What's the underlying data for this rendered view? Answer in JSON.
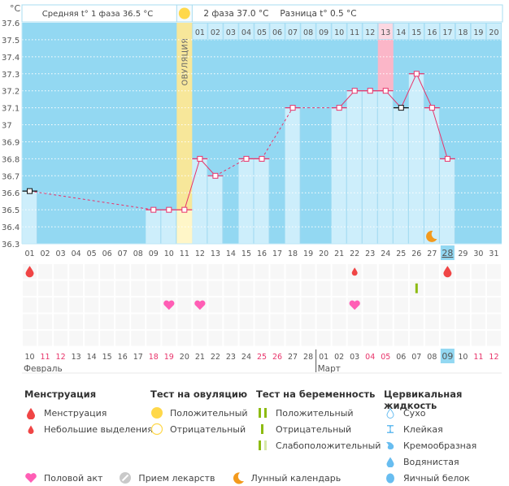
{
  "chart_data": {
    "type": "line",
    "title": "",
    "ylabel": "°C",
    "ylim": [
      36.3,
      37.6
    ],
    "yticks": [
      "37.6",
      "37.5",
      "37.4",
      "37.3",
      "37.2",
      "37.1",
      "37",
      "36.9",
      "36.8",
      "36.7",
      "36.6",
      "36.5",
      "36.4",
      "36.3"
    ],
    "cycle_days": [
      "01",
      "02",
      "03",
      "04",
      "05",
      "06",
      "07",
      "08",
      "09",
      "10",
      "11",
      "12",
      "13",
      "14",
      "15",
      "16",
      "17",
      "18",
      "19",
      "20",
      "21",
      "22",
      "23",
      "24",
      "25",
      "26",
      "27",
      "28",
      "29",
      "30",
      "31"
    ],
    "dates": [
      "10",
      "11",
      "12",
      "13",
      "14",
      "15",
      "16",
      "17",
      "18",
      "19",
      "20",
      "21",
      "22",
      "23",
      "24",
      "25",
      "26",
      "27",
      "28",
      "01",
      "02",
      "03",
      "04",
      "05",
      "06",
      "07",
      "08",
      "09",
      "10",
      "11",
      "12"
    ],
    "weekend_dates_idx": [
      1,
      2,
      8,
      9,
      15,
      16,
      22,
      23,
      29,
      30
    ],
    "months": [
      {
        "label": "Февраль",
        "start_idx": 0
      },
      {
        "label": "Март",
        "start_idx": 19
      }
    ],
    "phase2_days": [
      "01",
      "02",
      "03",
      "04",
      "05",
      "06",
      "07",
      "08",
      "09",
      "10",
      "11",
      "12",
      "13",
      "14",
      "15",
      "16",
      "17",
      "18",
      "19",
      "20"
    ],
    "phase2_start_idx": 11,
    "ovulation_idx": 10,
    "ovulation_label": "ОВУЛЯЦИЯ",
    "highlight_phase2_idx": 12,
    "current_day_idx": 27,
    "series": [
      {
        "name": "BBT",
        "points": [
          {
            "day": 1,
            "value": 36.61,
            "excluded": true
          },
          {
            "day": 9,
            "value": 36.5
          },
          {
            "day": 10,
            "value": 36.5
          },
          {
            "day": 11,
            "value": 36.5
          },
          {
            "day": 12,
            "value": 36.8
          },
          {
            "day": 13,
            "value": 36.7
          },
          {
            "day": 15,
            "value": 36.8
          },
          {
            "day": 16,
            "value": 36.8
          },
          {
            "day": 18,
            "value": 37.1
          },
          {
            "day": 21,
            "value": 37.1
          },
          {
            "day": 22,
            "value": 37.2
          },
          {
            "day": 23,
            "value": 37.2
          },
          {
            "day": 24,
            "value": 37.2
          },
          {
            "day": 25,
            "value": 37.1,
            "excluded": true
          },
          {
            "day": 26,
            "value": 37.3
          },
          {
            "day": 27,
            "value": 37.1
          },
          {
            "day": 28,
            "value": 36.8
          }
        ],
        "dashed_gaps": [
          [
            1,
            9
          ],
          [
            13,
            15
          ],
          [
            16,
            18
          ],
          [
            18,
            21
          ]
        ]
      }
    ],
    "moon_day": 27,
    "events": [
      {
        "row": 0,
        "day": 1,
        "type": "menstruation"
      },
      {
        "row": 0,
        "day": 22,
        "type": "spotting"
      },
      {
        "row": 0,
        "day": 28,
        "type": "menstruation"
      },
      {
        "row": 1,
        "day": 26,
        "type": "pregnancy-negative"
      },
      {
        "row": 2,
        "day": 10,
        "type": "intercourse"
      },
      {
        "row": 2,
        "day": 12,
        "type": "intercourse"
      },
      {
        "row": 2,
        "day": 22,
        "type": "intercourse"
      }
    ]
  },
  "header": {
    "unit": "°C",
    "phase1_avg": "Средняя t° 1 фаза 36.5 °C",
    "phase2_avg": "2 фаза 37.0 °C",
    "diff": "Разница t° 0.5 °C"
  },
  "colors": {
    "bg": "#93d8f2",
    "bar": "#cdeefb",
    "line": "#e8336a",
    "ovulation": "#f7e79a",
    "ovulation_dot": "#ffd84a",
    "highlight": "#fbb6c8",
    "weekend": "#e8336a",
    "moon": "#f39a1d",
    "heart": "#ff5eb5",
    "drop": "#f04545",
    "preg": "#8dbb12",
    "preg_light": "#d6e8a8",
    "mucus": "#68bdf0"
  },
  "legend": {
    "menstruation": {
      "title": "Менструация",
      "items": [
        "Менструация",
        "Небольшие выделения"
      ]
    },
    "ovulation_test": {
      "title": "Тест на овуляцию",
      "items": [
        "Положительный",
        "Отрицательный"
      ]
    },
    "pregnancy_test": {
      "title": "Тест на беременность",
      "items": [
        "Положительный",
        "Отрицательный",
        "Слабоположительный"
      ]
    },
    "cervical": {
      "title": "Цервикальная жидкость",
      "items": [
        "Сухо",
        "Клейкая",
        "Кремообразная",
        "Водянистая",
        "Яичный белок"
      ]
    },
    "other": [
      "Половой акт",
      "Прием лекарств",
      "Лунный календарь"
    ]
  }
}
